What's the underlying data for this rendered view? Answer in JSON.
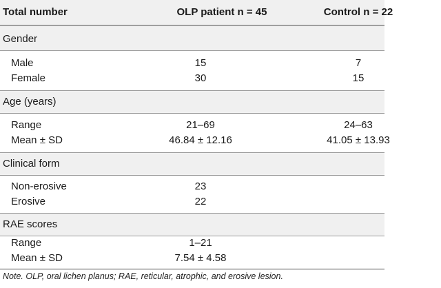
{
  "header": {
    "col0": "Total number",
    "col1": "OLP patient n = 45",
    "col2": "Control n = 22"
  },
  "sections": [
    {
      "title": "Gender",
      "rows": [
        {
          "label": "Male",
          "olp": "15",
          "control": "7"
        },
        {
          "label": "Female",
          "olp": "30",
          "control": "15"
        }
      ]
    },
    {
      "title": "Age (years)",
      "rows": [
        {
          "label": "Range",
          "olp": "21–69",
          "control": "24–63"
        },
        {
          "label": "Mean ± SD",
          "olp": "46.84 ± 12.16",
          "control": "41.05 ± 13.93"
        }
      ]
    },
    {
      "title": "Clinical form",
      "rows": [
        {
          "label": "Non-erosive",
          "olp": "23",
          "control": ""
        },
        {
          "label": "Erosive",
          "olp": "22",
          "control": ""
        }
      ]
    },
    {
      "title": "RAE scores",
      "rows": [
        {
          "label": "Range",
          "olp": "1–21",
          "control": ""
        },
        {
          "label": "Mean ± SD",
          "olp": "7.54 ± 4.58",
          "control": ""
        }
      ]
    }
  ],
  "note": "Note. OLP, oral lichen planus; RAE, reticular, atrophic, and erosive lesion."
}
